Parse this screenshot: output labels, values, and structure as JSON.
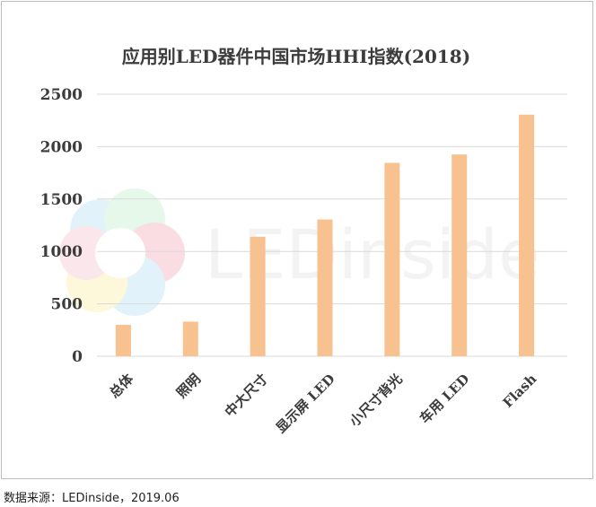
{
  "source_note": "数据来源：LEDinside，2019.06",
  "watermark_text": "LEDinside",
  "colors": {
    "bar": "#f7c28f",
    "grid": "#d9d9d9",
    "text": "#3c3c3c",
    "frame": "#bdbdbd"
  },
  "chart_data": {
    "type": "bar",
    "title": "应用别LED器件中国市场HHI指数(2018)",
    "categories": [
      "总体",
      "照明",
      "中大尺寸",
      "显示屏 LED",
      "小尺寸背光",
      "车用 LED",
      "Flash"
    ],
    "values": [
      300,
      330,
      1140,
      1305,
      1845,
      1925,
      2305
    ],
    "yticks": [
      0,
      500,
      1000,
      1500,
      2000,
      2500
    ],
    "ylim": [
      0,
      2500
    ],
    "xlabel": "",
    "ylabel": "",
    "grid": true,
    "legend": "none"
  }
}
